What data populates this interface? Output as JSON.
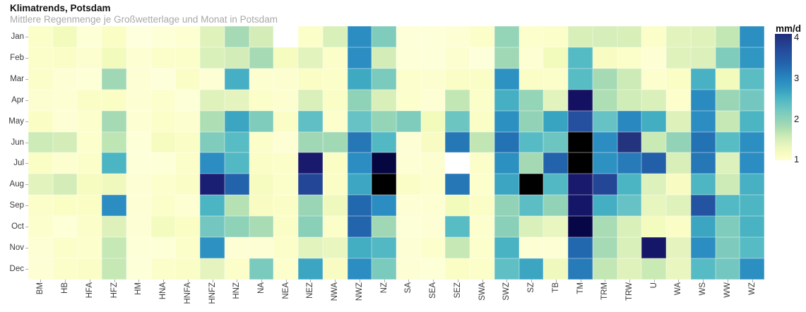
{
  "header": {
    "title": "Klimatrends, Potsdam",
    "subtitle": "Mittlere Regenmenge je Großwetterlage und Monat in Potsdam"
  },
  "legend": {
    "title": "mm/d",
    "tick_labels": [
      "4",
      "3",
      "2",
      "1"
    ]
  },
  "chart_data": {
    "type": "heatmap",
    "title": "Klimatrends, Potsdam",
    "subtitle": "Mittlere Regenmenge je Großwetterlage und Monat in Potsdam",
    "unit": "mm/d",
    "x_categories": [
      "BM",
      "HB",
      "HFA",
      "HFZ",
      "HM",
      "HNA",
      "HNFA",
      "HNFZ",
      "HNZ",
      "NA",
      "NEA",
      "NEZ",
      "NWA",
      "NWZ",
      "NZ",
      "SA",
      "SEA",
      "SEZ",
      "SWA",
      "SWZ",
      "SZ",
      "TB",
      "TM",
      "TRM",
      "TRW",
      "U",
      "WA",
      "WS",
      "WW",
      "WZ"
    ],
    "y_categories": [
      "Jan",
      "Feb",
      "Mar",
      "Apr",
      "May",
      "Jun",
      "Jul",
      "Aug",
      "Sep",
      "Oct",
      "Nov",
      "Dec"
    ],
    "legend": {
      "title": "mm/d",
      "tick_values": [
        4,
        3,
        2,
        1
      ],
      "domain": [
        1,
        4
      ],
      "colormap": "YlGnBu",
      "position": "right"
    },
    "matrix": [
      [
        1.05,
        1.2,
        0.95,
        1.1,
        0.92,
        0.95,
        0.97,
        1.4,
        1.8,
        1.5,
        null,
        1.05,
        1.45,
        2.9,
        2.1,
        0.94,
        0.94,
        0.96,
        1.04,
        1.95,
        1.0,
        1.03,
        1.47,
        1.48,
        1.47,
        1.05,
        1.38,
        1.4,
        1.62,
        2.88
      ],
      [
        1.05,
        1.07,
        0.98,
        1.2,
        0.97,
        1.03,
        1.02,
        1.45,
        1.5,
        1.8,
        1.15,
        1.38,
        1.05,
        2.9,
        1.5,
        0.95,
        0.94,
        0.98,
        0.93,
        1.85,
        0.97,
        1.2,
        2.43,
        1.12,
        1.05,
        0.96,
        1.4,
        1.44,
        2.1,
        2.8
      ],
      [
        1.05,
        0.96,
        0.95,
        1.85,
        0.96,
        0.93,
        1.07,
        0.96,
        2.55,
        0.98,
        0.98,
        1.1,
        1.04,
        2.6,
        2.15,
        1.0,
        0.98,
        1.06,
        1.07,
        2.85,
        1.06,
        1.04,
        2.4,
        1.8,
        1.55,
        0.99,
        1.1,
        2.53,
        1.2,
        2.38
      ],
      [
        0.98,
        0.97,
        1.06,
        1.1,
        0.97,
        1.0,
        0.95,
        1.4,
        1.35,
        1.05,
        0.98,
        1.45,
        1.08,
        2.0,
        1.47,
        1.0,
        0.96,
        1.62,
        1.05,
        2.55,
        1.95,
        1.37,
        4.35,
        1.75,
        1.53,
        1.45,
        1.0,
        2.92,
        1.9,
        2.2
      ],
      [
        1.1,
        0.96,
        1.0,
        1.8,
        0.97,
        1.05,
        0.98,
        1.75,
        2.65,
        2.1,
        1.07,
        2.35,
        1.0,
        2.3,
        1.95,
        2.1,
        1.2,
        2.25,
        1.08,
        2.87,
        1.97,
        2.67,
        3.6,
        2.3,
        2.95,
        2.57,
        1.42,
        2.9,
        1.6,
        2.5
      ],
      [
        1.55,
        1.5,
        1.0,
        1.65,
        0.95,
        1.15,
        1.08,
        2.1,
        2.4,
        1.05,
        0.96,
        1.85,
        1.83,
        3.15,
        2.45,
        0.96,
        1.13,
        3.15,
        1.63,
        3.2,
        2.42,
        2.25,
        5.0,
        2.9,
        4.0,
        1.58,
        1.97,
        3.2,
        2.4,
        2.88
      ],
      [
        1.1,
        0.98,
        1.02,
        2.5,
        0.94,
        0.95,
        1.05,
        2.9,
        2.45,
        1.07,
        1.05,
        4.25,
        1.1,
        2.9,
        4.55,
        0.96,
        0.98,
        null,
        1.05,
        2.87,
        1.82,
        3.35,
        5.0,
        2.85,
        3.1,
        3.4,
        1.46,
        3.15,
        1.43,
        2.9
      ],
      [
        1.38,
        1.5,
        1.15,
        1.22,
        0.96,
        1.0,
        1.06,
        4.2,
        3.35,
        1.15,
        1.03,
        3.75,
        1.07,
        2.63,
        5.0,
        1.08,
        0.99,
        3.15,
        1.0,
        2.64,
        5.0,
        2.45,
        4.25,
        3.75,
        2.5,
        1.43,
        1.12,
        2.48,
        1.55,
        2.54
      ],
      [
        1.05,
        1.1,
        1.1,
        2.9,
        0.96,
        1.03,
        0.97,
        2.5,
        1.7,
        1.12,
        1.06,
        1.9,
        1.22,
        3.3,
        2.9,
        0.96,
        0.97,
        1.2,
        1.06,
        1.97,
        2.37,
        1.97,
        4.3,
        2.56,
        2.3,
        1.33,
        1.4,
        3.55,
        2.44,
        2.48
      ],
      [
        1.0,
        0.95,
        1.04,
        1.42,
        0.96,
        1.17,
        1.1,
        2.2,
        2.0,
        1.78,
        1.07,
        2.03,
        1.02,
        3.33,
        1.85,
        0.95,
        0.96,
        2.4,
        0.99,
        2.03,
        1.45,
        1.3,
        4.5,
        1.78,
        1.45,
        1.18,
        1.08,
        2.65,
        2.1,
        2.52
      ],
      [
        0.96,
        1.05,
        1.0,
        1.6,
        0.95,
        0.95,
        1.01,
        2.85,
        0.96,
        0.96,
        1.05,
        1.38,
        1.3,
        2.57,
        2.45,
        0.96,
        1.0,
        1.6,
        1.0,
        2.52,
        0.96,
        0.96,
        3.3,
        1.8,
        1.45,
        4.3,
        1.35,
        2.9,
        2.12,
        2.42
      ],
      [
        0.96,
        1.05,
        1.07,
        1.6,
        0.94,
        1.05,
        1.08,
        1.35,
        1.05,
        2.15,
        1.0,
        2.65,
        1.12,
        2.9,
        2.15,
        0.96,
        0.95,
        1.1,
        1.05,
        2.35,
        2.65,
        1.22,
        3.1,
        1.62,
        1.4,
        1.57,
        1.3,
        2.42,
        2.2,
        2.88
      ]
    ]
  },
  "colors": {
    "background": "#ffffff",
    "title": "#111111",
    "subtitle": "#a9a9a9",
    "axis_label": "#3a3a3a",
    "tick": "#ababab",
    "missing_cell": "#ffffff",
    "colorscale": [
      [
        0.9,
        "#feffe0"
      ],
      [
        1.0,
        "#fcfecb"
      ],
      [
        1.1,
        "#fafdc4"
      ],
      [
        1.2,
        "#f2fabc"
      ],
      [
        1.3,
        "#eaf6c0"
      ],
      [
        1.4,
        "#e0f2bc"
      ],
      [
        1.5,
        "#d4edb8"
      ],
      [
        1.6,
        "#c6e8b4"
      ],
      [
        1.7,
        "#b6e1b3"
      ],
      [
        1.8,
        "#a6dab4"
      ],
      [
        1.9,
        "#9ad5b6"
      ],
      [
        2.0,
        "#8ed2b8"
      ],
      [
        2.1,
        "#80ccbc"
      ],
      [
        2.2,
        "#74c7c0"
      ],
      [
        2.3,
        "#66c2c4"
      ],
      [
        2.4,
        "#58bcc4"
      ],
      [
        2.5,
        "#4cb5c3"
      ],
      [
        2.6,
        "#3fa9c2"
      ],
      [
        2.7,
        "#37a0c2"
      ],
      [
        2.8,
        "#3096c2"
      ],
      [
        2.9,
        "#2b8dc1"
      ],
      [
        3.0,
        "#2884bd"
      ],
      [
        3.1,
        "#277bb8"
      ],
      [
        3.2,
        "#2372b4"
      ],
      [
        3.3,
        "#2268ae"
      ],
      [
        3.4,
        "#235fa9"
      ],
      [
        3.5,
        "#2456a5"
      ],
      [
        3.6,
        "#24509f"
      ],
      [
        3.8,
        "#234293"
      ],
      [
        4.0,
        "#24337e"
      ],
      [
        4.2,
        "#1b1f73"
      ],
      [
        4.35,
        "#141162"
      ],
      [
        4.5,
        "#070748"
      ],
      [
        4.6,
        "#050438"
      ],
      [
        5.0,
        "#000000"
      ]
    ]
  }
}
